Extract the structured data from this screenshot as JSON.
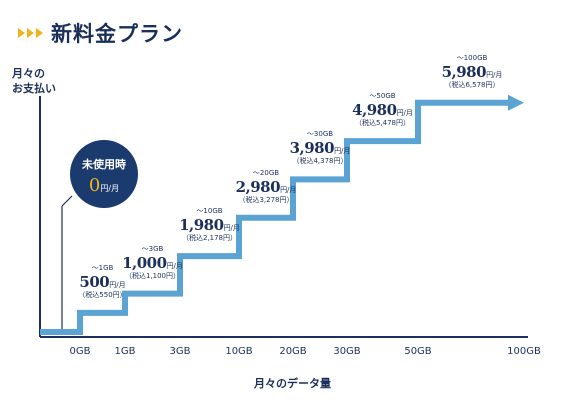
{
  "header": {
    "title": "新料金プラン"
  },
  "axes": {
    "y_label_line1": "月々の",
    "y_label_line2": "お支払い",
    "x_label": "月々のデータ量"
  },
  "unused_badge": {
    "title": "未使用時",
    "price": "0",
    "unit": "円/月"
  },
  "colors": {
    "navy": "#1b2f5b",
    "step_blue": "#5aa3d2",
    "badge_bg": "#1b3a6e",
    "accent_yellow": "#f2b21e"
  },
  "chart_data": {
    "type": "step",
    "x_ticks": [
      "0GB",
      "1GB",
      "3GB",
      "10GB",
      "20GB",
      "30GB",
      "50GB",
      "100GB"
    ],
    "plans": [
      {
        "range": "～1GB",
        "price": "500",
        "unit": "円/月",
        "tax": "（税込550円）"
      },
      {
        "range": "～3GB",
        "price": "1,000",
        "unit": "円/月",
        "tax": "（税込1,100円）"
      },
      {
        "range": "～10GB",
        "price": "1,980",
        "unit": "円/月",
        "tax": "（税込2,178円）"
      },
      {
        "range": "～20GB",
        "price": "2,980",
        "unit": "円/月",
        "tax": "（税込3,278円）"
      },
      {
        "range": "～30GB",
        "price": "3,980",
        "unit": "円/月",
        "tax": "（税込4,378円）"
      },
      {
        "range": "～50GB",
        "price": "4,980",
        "unit": "円/月",
        "tax": "（税込5,478円）"
      },
      {
        "range": "～100GB",
        "price": "5,980",
        "unit": "円/月",
        "tax": "（税込6,578円）"
      }
    ],
    "values": [
      0,
      500,
      1000,
      1980,
      2980,
      3980,
      4980,
      5980
    ]
  }
}
